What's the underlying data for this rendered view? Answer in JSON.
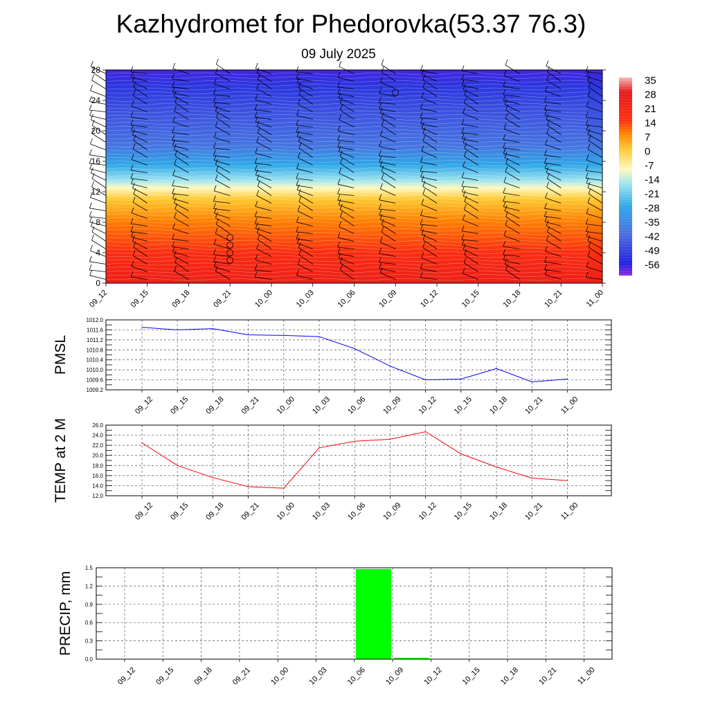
{
  "header": {
    "title": "Kazhydromet for Phedorovka(53.37 76.3)",
    "date": "09 July 2025"
  },
  "time_labels": [
    "09_12",
    "09_15",
    "09_18",
    "09_21",
    "10_00",
    "10_03",
    "10_06",
    "10_09",
    "10_12",
    "10_15",
    "10_18",
    "10_21",
    "11_00"
  ],
  "chart_data": [
    {
      "type": "heatmap",
      "name": "temperature-wind-cross-section",
      "x": [
        "09_12",
        "09_15",
        "09_18",
        "09_21",
        "10_00",
        "10_03",
        "10_06",
        "10_09",
        "10_12",
        "10_15",
        "10_18",
        "10_21",
        "11_00"
      ],
      "y_ticks": [
        0,
        4,
        8,
        12,
        16,
        20,
        24,
        28
      ],
      "ylim": [
        0,
        28
      ],
      "colorbar": {
        "labels": [
          "35",
          "28",
          "21",
          "14",
          "7",
          "0",
          "-7",
          "-14",
          "-21",
          "-28",
          "-35",
          "-42",
          "-49",
          "-56"
        ],
        "stops": [
          {
            "value": 35,
            "color": "#f4b6b6"
          },
          {
            "value": 28,
            "color": "#e41a1c"
          },
          {
            "value": 14,
            "color": "#ff3010"
          },
          {
            "value": 7,
            "color": "#ff8a00"
          },
          {
            "value": 0,
            "color": "#ffc830"
          },
          {
            "value": -10,
            "color": "#fff9c0"
          },
          {
            "value": -17,
            "color": "#9fe4f0"
          },
          {
            "value": -28,
            "color": "#2fa8e8"
          },
          {
            "value": -42,
            "color": "#4a6ce0"
          },
          {
            "value": -56,
            "color": "#2020e0"
          },
          {
            "value": -62,
            "color": "#8a2be2"
          }
        ]
      },
      "temperature_profile": [
        {
          "level": 0,
          "value": 24
        },
        {
          "level": 4,
          "value": 16
        },
        {
          "level": 8,
          "value": 8
        },
        {
          "level": 11,
          "value": 0
        },
        {
          "level": 12.5,
          "value": -10
        },
        {
          "level": 13.5,
          "value": -17
        },
        {
          "level": 15.5,
          "value": -28
        },
        {
          "level": 18,
          "value": -40
        },
        {
          "level": 22,
          "value": -46
        },
        {
          "level": 26,
          "value": -52
        },
        {
          "level": 28,
          "value": -58
        }
      ],
      "circle_markers": [
        {
          "time": "09_21",
          "level": 3
        },
        {
          "time": "09_21",
          "level": 4
        },
        {
          "time": "09_21",
          "level": 5
        },
        {
          "time": "09_21",
          "level": 6
        },
        {
          "time": "10_09",
          "level": 25
        }
      ]
    },
    {
      "type": "line",
      "name": "pmsl",
      "ylabel": "PMSL",
      "x": [
        "09_12",
        "09_15",
        "09_18",
        "09_21",
        "10_00",
        "10_03",
        "10_06",
        "10_09",
        "10_12",
        "10_15",
        "10_18",
        "10_21",
        "11_00"
      ],
      "values": [
        1011.7,
        1011.6,
        1011.65,
        1011.4,
        1011.38,
        1011.33,
        1010.85,
        1010.15,
        1009.6,
        1009.63,
        1010.05,
        1009.52,
        1009.63
      ],
      "ylim": [
        1009.2,
        1012.0
      ],
      "y_ticks": [
        "1009.2",
        "1009.6",
        "1010.0",
        "1010.4",
        "1010.8",
        "1011.2",
        "1011.6",
        "1012.0"
      ],
      "color": "#0000ff",
      "grid": true
    },
    {
      "type": "line",
      "name": "temp-2m",
      "ylabel": "TEMP at 2 M",
      "x": [
        "09_12",
        "09_15",
        "09_18",
        "09_21",
        "10_00",
        "10_03",
        "10_06",
        "10_09",
        "10_12",
        "10_15",
        "10_18",
        "10_21",
        "11_00"
      ],
      "values": [
        22.5,
        18.0,
        15.6,
        13.8,
        13.5,
        21.5,
        22.8,
        23.2,
        24.7,
        20.3,
        17.7,
        15.5,
        15.0
      ],
      "ylim": [
        12.0,
        26.0
      ],
      "y_ticks": [
        "12.0",
        "14.0",
        "16.0",
        "18.0",
        "20.0",
        "22.0",
        "24.0",
        "26.0"
      ],
      "color": "#ff0000",
      "grid": true
    },
    {
      "type": "bar",
      "name": "precip",
      "ylabel": "PRECIP, mm",
      "categories": [
        "09_12",
        "09_15",
        "09_18",
        "09_21",
        "10_00",
        "10_03",
        "10_06",
        "10_09",
        "10_12",
        "10_15",
        "10_18",
        "10_21",
        "11_00"
      ],
      "values": [
        0,
        0,
        0,
        0,
        0,
        0,
        0,
        1.48,
        0.02,
        0,
        0,
        0,
        0
      ],
      "ylim": [
        0,
        1.5
      ],
      "y_ticks": [
        "0.0",
        "0.3",
        "0.6",
        "0.9",
        "1.2",
        "1.5"
      ],
      "color": "#00ff00",
      "grid": true
    }
  ]
}
